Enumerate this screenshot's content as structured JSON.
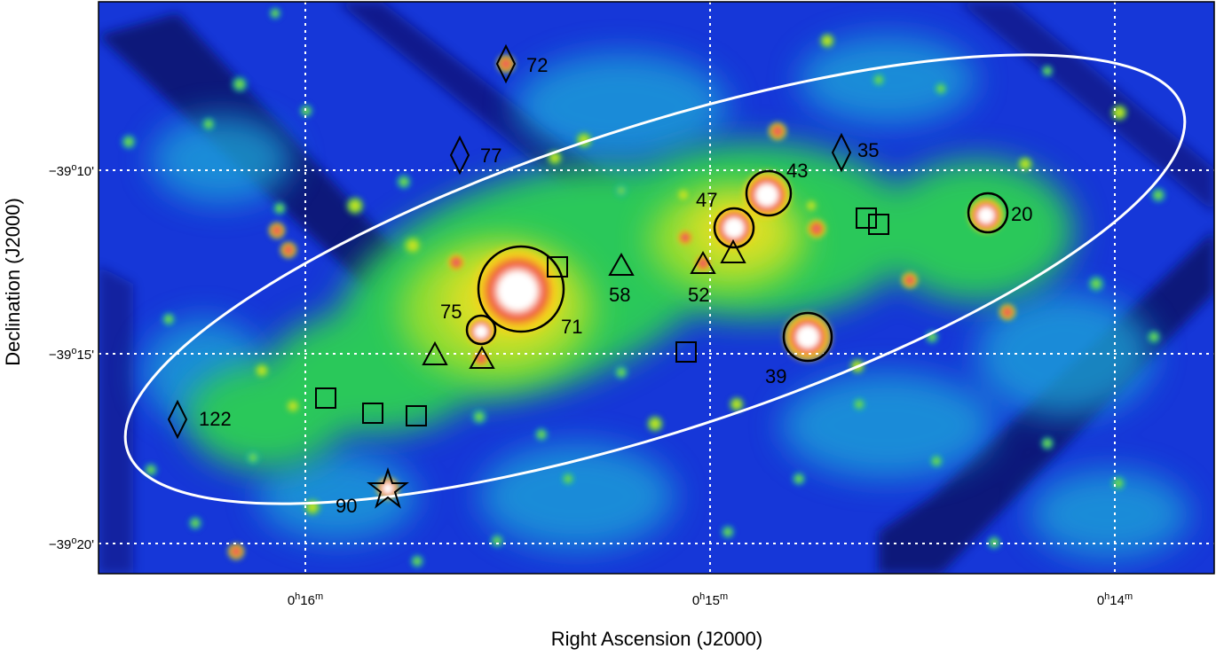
{
  "figure": {
    "axes": {
      "x_title": "Right Ascension (J2000)",
      "y_title": "Declination (J2000)",
      "x_ticks": [
        {
          "main": "0",
          "sup1": "h",
          "mid": "16",
          "sup2": "m"
        },
        {
          "main": "0",
          "sup1": "h",
          "mid": "15",
          "sup2": "m"
        },
        {
          "main": "0",
          "sup1": "h",
          "mid": "14",
          "sup2": "m"
        }
      ],
      "y_ticks": [
        {
          "pre": "−39",
          "sup1": "o",
          "mid": "10",
          "sup2": "'"
        },
        {
          "pre": "−39",
          "sup1": "o",
          "mid": "15",
          "sup2": "'"
        },
        {
          "pre": "−39",
          "sup1": "o",
          "mid": "20",
          "sup2": "'"
        }
      ]
    },
    "source_labels": [
      "72",
      "77",
      "35",
      "43",
      "47",
      "20",
      "58",
      "52",
      "75",
      "71",
      "39",
      "122",
      "90"
    ],
    "colors": {
      "background": "#1637d8",
      "diffuse": "#27c05a",
      "bright": "#f2e21e",
      "peak": "#e32516",
      "saturated": "#ffffff",
      "ellipse": "#ffffff",
      "grid": "#ffffff",
      "markers": "#000000"
    },
    "marker_shapes": [
      "circle",
      "diamond",
      "triangle",
      "square",
      "star"
    ]
  }
}
